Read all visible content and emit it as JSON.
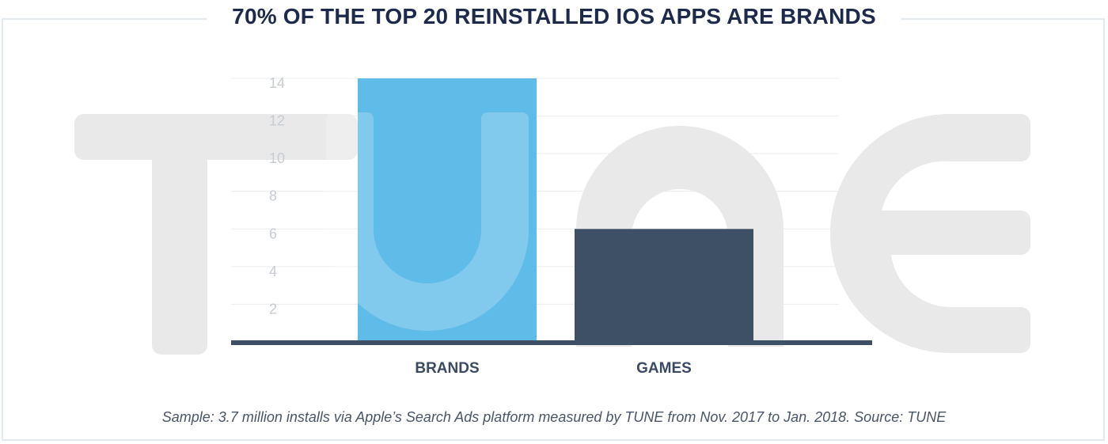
{
  "watermark": {
    "text": "TUNE",
    "color": "#e9e9e9"
  },
  "footnote": "Sample: 3.7 million installs via Apple’s Search Ads platform measured by TUNE from Nov. 2017 to Jan. 2018. Source: TUNE",
  "chart_data": {
    "type": "bar",
    "title": "70% OF THE TOP 20 REINSTALLED IOS APPS ARE BRANDS",
    "categories": [
      "BRANDS",
      "GAMES"
    ],
    "values": [
      14,
      6
    ],
    "colors": [
      "#5fbbe8",
      "#3e5066"
    ],
    "xlabel": "",
    "ylabel": "",
    "ylim": [
      0,
      14
    ],
    "yticks": [
      2,
      4,
      6,
      8,
      10,
      12,
      14
    ],
    "grid": true,
    "legend": "none"
  }
}
